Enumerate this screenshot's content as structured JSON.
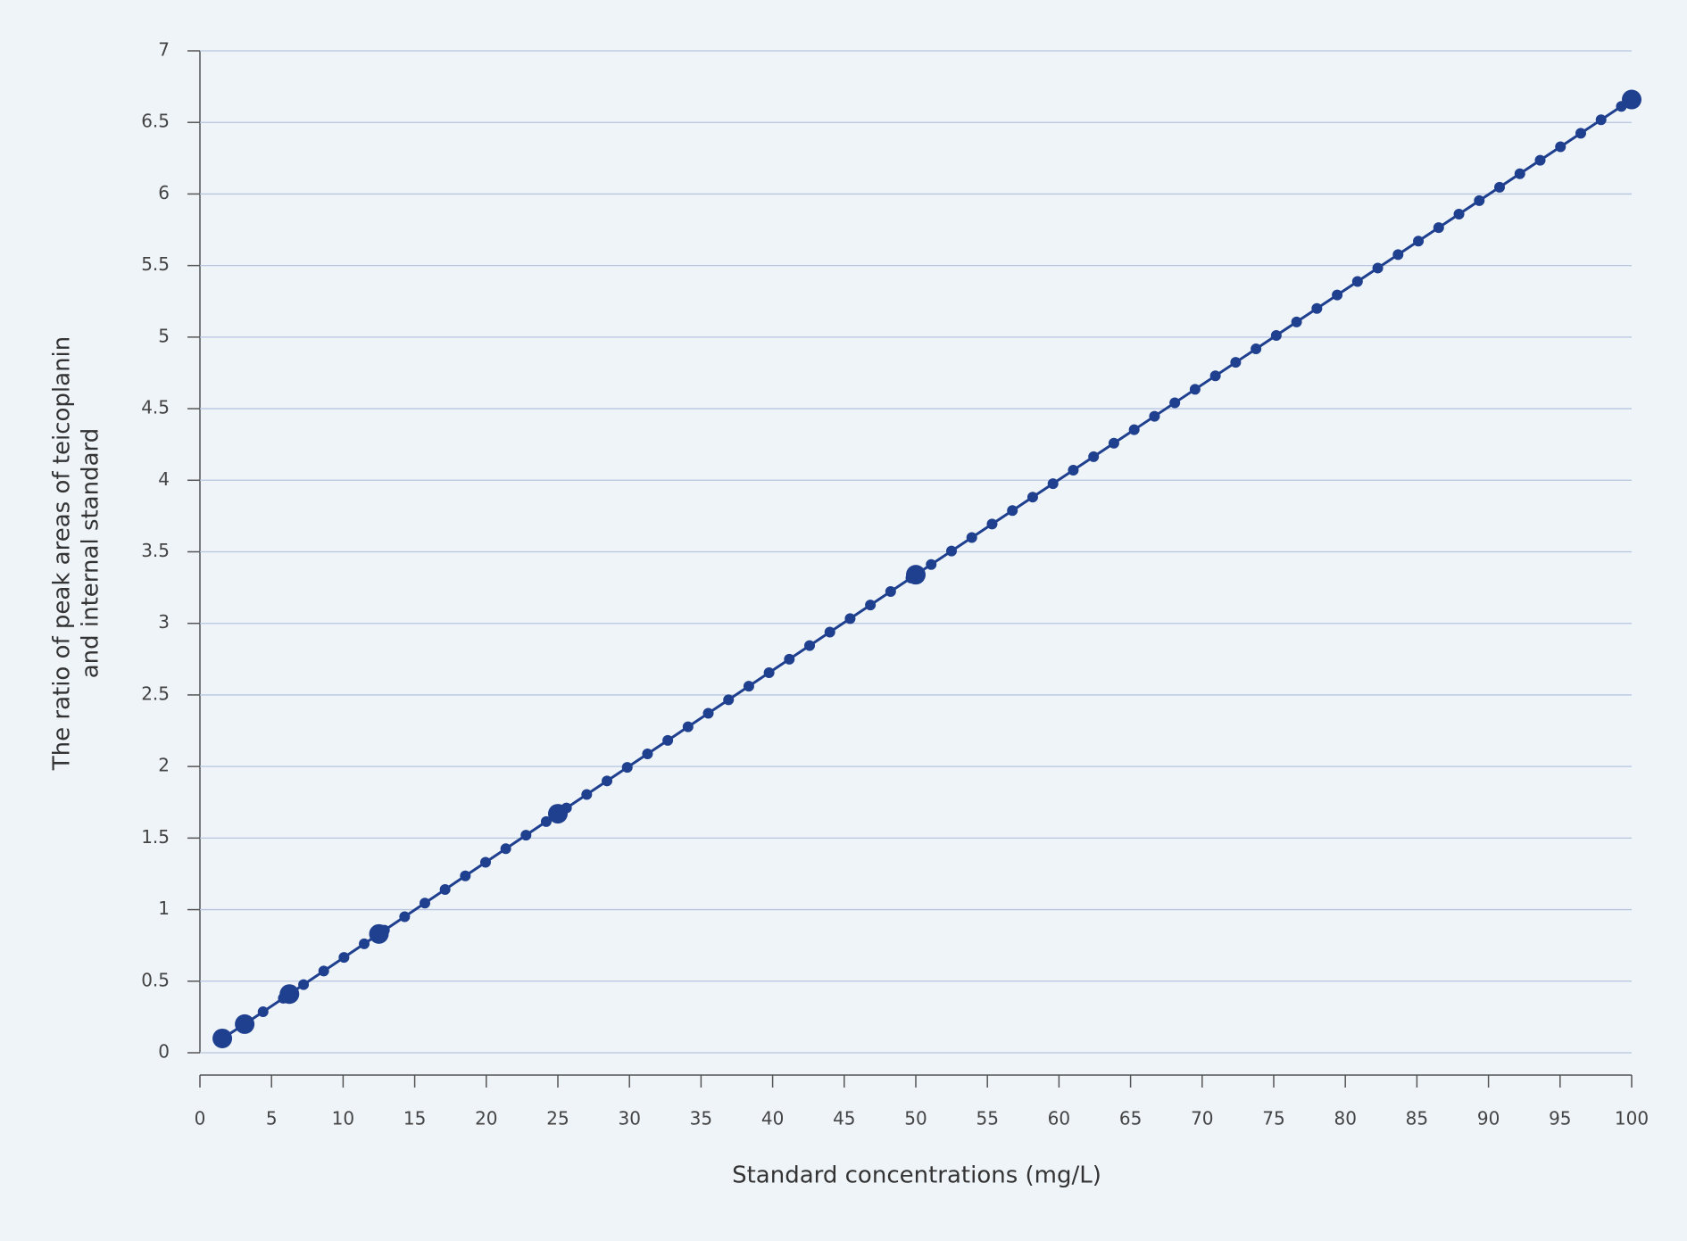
{
  "chart_data": {
    "type": "scatter",
    "xlabel": "Standard concentrations (mg/L)",
    "ylabel": [
      "The ratio of peak areas of teicoplanin",
      "and internal standard"
    ],
    "x": [
      1.5625,
      3.125,
      6.25,
      12.5,
      25,
      50,
      100
    ],
    "series": [
      {
        "color": "#1f3f8f",
        "values": [
          0.1,
          0.2,
          0.41,
          0.83,
          1.67,
          3.34,
          6.66
        ]
      }
    ],
    "xlim": [
      0,
      100
    ],
    "xticks": [
      0,
      5,
      10,
      15,
      20,
      25,
      30,
      35,
      40,
      45,
      50,
      55,
      60,
      65,
      70,
      75,
      80,
      85,
      90,
      95,
      100
    ],
    "ylim": [
      0,
      7
    ],
    "yticks": [
      0,
      0.5,
      1,
      1.5,
      2,
      2.5,
      3,
      3.5,
      4,
      4.5,
      5,
      5.5,
      6,
      6.5,
      7
    ],
    "grid": true
  }
}
